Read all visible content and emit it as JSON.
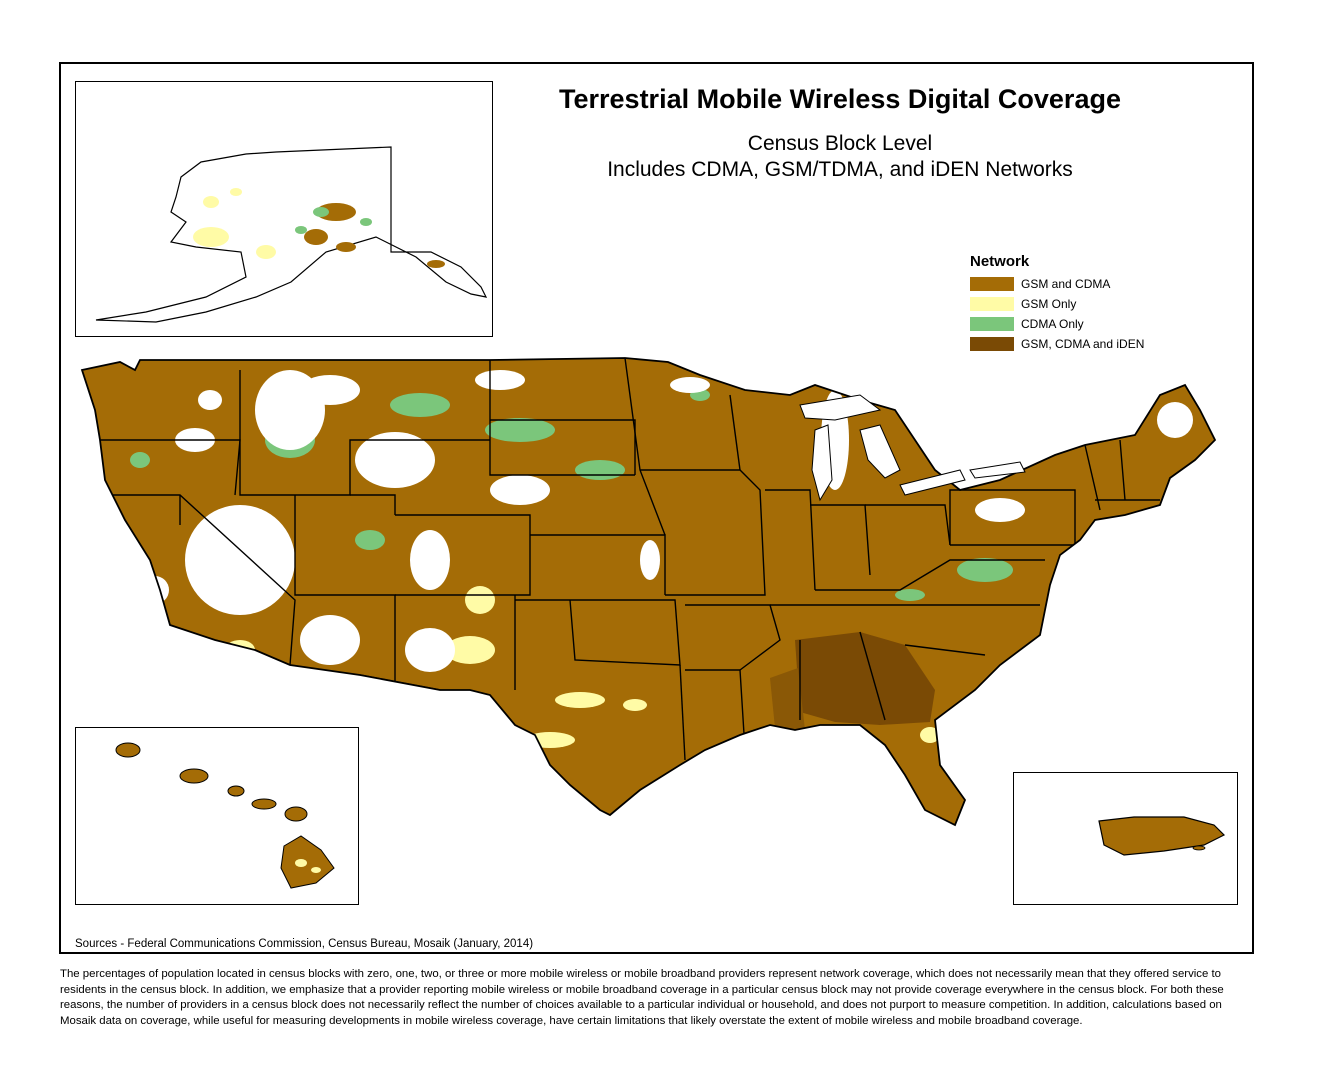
{
  "title": "Terrestrial Mobile Wireless Digital Coverage",
  "subtitle_line1": "Census Block Level",
  "subtitle_line2": "Includes CDMA, GSM/TDMA, and iDEN Networks",
  "legend": {
    "title": "Network",
    "items": [
      {
        "label": "GSM and CDMA",
        "color": "#A46C06"
      },
      {
        "label": "GSM Only",
        "color": "#FFFBA6"
      },
      {
        "label": "CDMA Only",
        "color": "#7BC67B"
      },
      {
        "label": "GSM, CDMA and iDEN",
        "color": "#7A4A05"
      }
    ]
  },
  "sources": "Sources - Federal Communications Commission, Census Bureau, Mosaik (January, 2014)",
  "footnote": "The percentages of population located in census blocks with zero, one, two, or three or more mobile wireless or mobile broadband providers represent network coverage, which does not necessarily mean that they offered service to residents in the census block. In addition, we emphasize that a provider reporting mobile wireless or mobile broadband coverage in a particular census block may not provide coverage everywhere in the census block. For both these reasons, the number of providers in a census block does not necessarily reflect the number of choices available to a particular individual or household, and does not purport to measure competition. In addition, calculations based on Mosaik data on coverage, while useful for measuring developments in mobile wireless coverage, have certain limitations that likely overstate the extent of mobile wireless and mobile broadband coverage."
}
